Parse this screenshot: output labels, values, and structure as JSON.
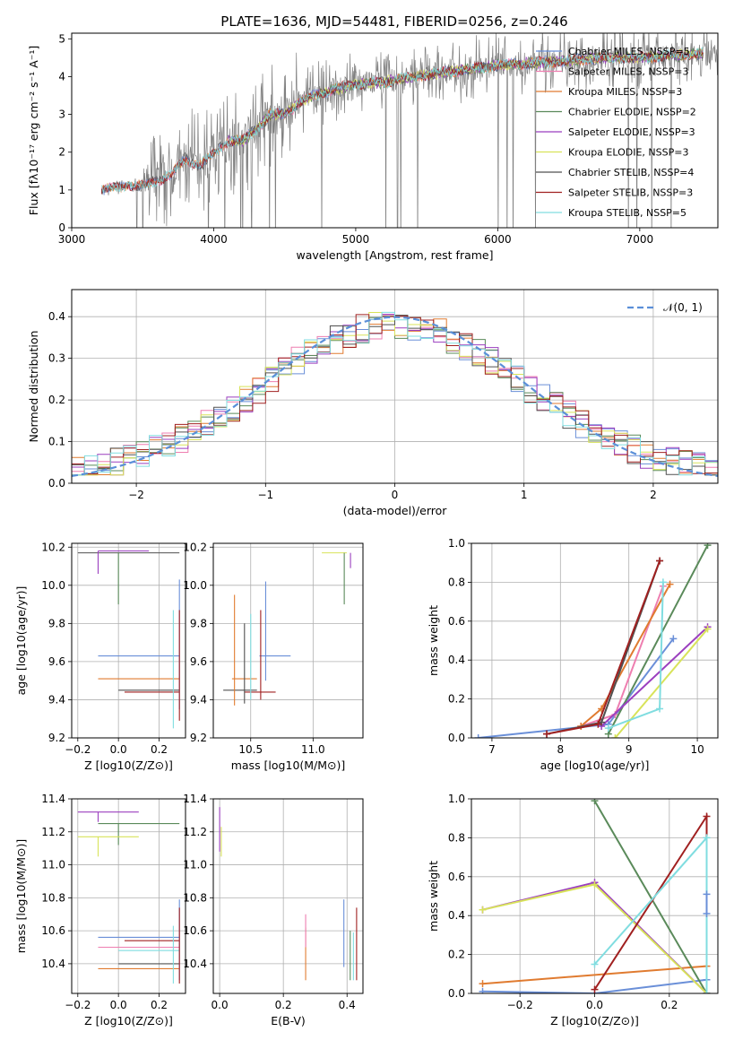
{
  "figure": {
    "title": "PLATE=1636, MJD=54481, FIBERID=0256, z=0.246"
  },
  "colors": {
    "chabrier_miles": "#6a8fd8",
    "salpeter_miles": "#ee7eb0",
    "kroupa_miles": "#e07b30",
    "chabrier_elodie": "#5a8a5a",
    "salpeter_elodie": "#9b3fbf",
    "kroupa_elodie": "#d8e35a",
    "chabrier_stelib": "#505050",
    "salpeter_stelib": "#a02020",
    "kroupa_stelib": "#80dde0",
    "data_spectrum": "#808080",
    "gaussian": "#5a8fd8"
  },
  "chart_data": [
    {
      "id": "spectrum",
      "type": "line",
      "xlabel": "wavelength [Angstrom, rest frame]",
      "ylabel": "Flux [fλ10⁻¹⁷ erg cm⁻² s⁻¹ A⁻¹]",
      "xlim": [
        3000,
        7550
      ],
      "ylim": [
        0,
        5.15
      ],
      "xticks": [
        "3000",
        "4000",
        "5000",
        "6000",
        "7000"
      ],
      "yticks": [
        "0",
        "1",
        "2",
        "3",
        "4",
        "5"
      ],
      "legend": [
        {
          "label": "Chabrier MILES, NSSP=5",
          "color_key": "chabrier_miles"
        },
        {
          "label": "Salpeter MILES, NSSP=3",
          "color_key": "salpeter_miles"
        },
        {
          "label": "Kroupa MILES, NSSP=3",
          "color_key": "kroupa_miles"
        },
        {
          "label": "Chabrier ELODIE, NSSP=2",
          "color_key": "chabrier_elodie"
        },
        {
          "label": "Salpeter ELODIE, NSSP=3",
          "color_key": "salpeter_elodie"
        },
        {
          "label": "Kroupa ELODIE, NSSP=3",
          "color_key": "kroupa_elodie"
        },
        {
          "label": "Chabrier STELIB, NSSP=4",
          "color_key": "chabrier_stelib"
        },
        {
          "label": "Salpeter STELIB, NSSP=3",
          "color_key": "salpeter_stelib"
        },
        {
          "label": "Kroupa STELIB, NSSP=5",
          "color_key": "kroupa_stelib"
        }
      ],
      "legend_placement": "right",
      "continuum": {
        "x": [
          3210,
          3300,
          3400,
          3500,
          3600,
          3700,
          3800,
          3900,
          4000,
          4100,
          4200,
          4300,
          4400,
          4500,
          4600,
          4700,
          4800,
          4900,
          5000,
          5200,
          5400,
          5600,
          5800,
          6000,
          6200,
          6400,
          6600,
          6800,
          7000,
          7200,
          7400,
          7550
        ],
        "y": [
          1.0,
          1.05,
          1.15,
          1.1,
          1.25,
          1.4,
          1.8,
          1.65,
          1.95,
          2.3,
          2.3,
          2.6,
          3.0,
          3.0,
          3.3,
          3.5,
          3.6,
          3.7,
          3.8,
          3.85,
          4.0,
          4.1,
          4.2,
          4.3,
          4.35,
          4.4,
          4.45,
          4.5,
          4.5,
          4.55,
          4.6,
          4.6
        ]
      }
    },
    {
      "id": "residuals",
      "type": "line",
      "xlabel": "(data-model)/error",
      "ylabel": "Normed distribution",
      "xlim": [
        -2.5,
        2.5
      ],
      "ylim": [
        0,
        0.465
      ],
      "xticks": [
        "−2",
        "−1",
        "0",
        "1",
        "2"
      ],
      "yticks": [
        "0.0",
        "0.1",
        "0.2",
        "0.3",
        "0.4"
      ],
      "legend": [
        {
          "label": "𝒩(0, 1)",
          "color_key": "gaussian"
        }
      ],
      "legend_placement": "upper right",
      "grid": true
    },
    {
      "id": "age_vs_Z",
      "type": "scatter",
      "xlabel": "Z [log10(Z/Z⊙)]",
      "ylabel": "age [log10(age/yr)]",
      "xlim": [
        -0.23,
        0.33
      ],
      "ylim": [
        9.2,
        10.22
      ],
      "xticks": [
        "−0.2",
        "0.0",
        "0.2"
      ],
      "yticks": [
        "9.2",
        "9.4",
        "9.6",
        "9.8",
        "10.0",
        "10.2"
      ],
      "grid": true,
      "points": [
        {
          "x": -0.2,
          "y": 10.17,
          "xerr": [
            0,
            0.5
          ],
          "yerr": [
            0.0,
            0.0
          ],
          "color_key": "chabrier_stelib"
        },
        {
          "x": -0.1,
          "y": 10.18,
          "xerr": [
            0.0,
            0.25
          ],
          "yerr": [
            0.12,
            0.0
          ],
          "color_key": "salpeter_elodie"
        },
        {
          "x": 0.0,
          "y": 10.17,
          "xerr": [
            0.0,
            0.0
          ],
          "yerr": [
            0.27,
            0.0
          ],
          "color_key": "chabrier_elodie"
        },
        {
          "x": -0.1,
          "y": 9.63,
          "xerr": [
            0,
            0.4
          ],
          "yerr": [
            0,
            0
          ],
          "color_key": "chabrier_miles"
        },
        {
          "x": -0.1,
          "y": 9.51,
          "xerr": [
            0,
            0.4
          ],
          "yerr": [
            0,
            0
          ],
          "color_key": "kroupa_miles"
        },
        {
          "x": 0.0,
          "y": 9.45,
          "xerr": [
            0,
            0.3
          ],
          "yerr": [
            0,
            0
          ],
          "color_key": "chabrier_stelib"
        },
        {
          "x": 0.03,
          "y": 9.44,
          "xerr": [
            0,
            0.27
          ],
          "yerr": [
            0,
            0
          ],
          "color_key": "salpeter_stelib"
        },
        {
          "x": 0.27,
          "y": 9.57,
          "xerr": [
            0,
            0
          ],
          "yerr": [
            0.32,
            0.3
          ],
          "color_key": "kroupa_stelib"
        },
        {
          "x": 0.3,
          "y": 9.65,
          "xerr": [
            0,
            0
          ],
          "yerr": [
            0.3,
            0.38
          ],
          "color_key": "chabrier_miles"
        },
        {
          "x": 0.3,
          "y": 9.58,
          "xerr": [
            0,
            0
          ],
          "yerr": [
            0.29,
            0.29
          ],
          "color_key": "salpeter_stelib"
        }
      ]
    },
    {
      "id": "age_vs_mass",
      "type": "scatter",
      "xlabel": "mass [log10(M/M⊙)]",
      "ylabel": "",
      "xlim": [
        10.2,
        11.4
      ],
      "ylim": [
        9.2,
        10.22
      ],
      "xticks": [
        "10.5",
        "11.0"
      ],
      "yticks": [
        "9.2",
        "9.4",
        "9.6",
        "9.8",
        "10.0",
        "10.2"
      ],
      "grid": true,
      "points": [
        {
          "x": 11.17,
          "y": 10.17,
          "xerr": [
            0.1,
            0.1
          ],
          "yerr": [
            0.0,
            0.0
          ],
          "color_key": "kroupa_elodie"
        },
        {
          "x": 11.3,
          "y": 10.17,
          "xerr": [
            0.0,
            0.0
          ],
          "yerr": [
            0.08,
            0.0
          ],
          "color_key": "salpeter_elodie"
        },
        {
          "x": 11.25,
          "y": 10.17,
          "xerr": [
            0.0,
            0.0
          ],
          "yerr": [
            0.27,
            0.0
          ],
          "color_key": "chabrier_elodie"
        },
        {
          "x": 10.57,
          "y": 9.63,
          "xerr": [
            0.0,
            0.25
          ],
          "yerr": [
            0.0,
            0.0
          ],
          "color_key": "chabrier_miles"
        },
        {
          "x": 10.45,
          "y": 9.51,
          "xerr": [
            0.1,
            0.1
          ],
          "yerr": [
            0.0,
            0.0
          ],
          "color_key": "kroupa_miles"
        },
        {
          "x": 10.4,
          "y": 9.45,
          "xerr": [
            0.12,
            0.15
          ],
          "yerr": [
            0.0,
            0.0
          ],
          "color_key": "chabrier_stelib"
        },
        {
          "x": 10.55,
          "y": 9.44,
          "xerr": [
            0.1,
            0.15
          ],
          "yerr": [
            0.0,
            0.0
          ],
          "color_key": "salpeter_stelib"
        },
        {
          "x": 10.37,
          "y": 9.65,
          "xerr": [
            0,
            0
          ],
          "yerr": [
            0.28,
            0.3
          ],
          "color_key": "kroupa_miles"
        },
        {
          "x": 10.45,
          "y": 9.6,
          "xerr": [
            0,
            0
          ],
          "yerr": [
            0.22,
            0.2
          ],
          "color_key": "chabrier_stelib"
        },
        {
          "x": 10.58,
          "y": 9.6,
          "xerr": [
            0,
            0
          ],
          "yerr": [
            0.2,
            0.27
          ],
          "color_key": "salpeter_stelib"
        },
        {
          "x": 10.62,
          "y": 9.7,
          "xerr": [
            0,
            0
          ],
          "yerr": [
            0.2,
            0.32
          ],
          "color_key": "chabrier_miles"
        },
        {
          "x": 10.5,
          "y": 9.55,
          "xerr": [
            0,
            0
          ],
          "yerr": [
            0.15,
            0.3
          ],
          "color_key": "kroupa_stelib"
        }
      ]
    },
    {
      "id": "massweight_vs_age",
      "type": "line",
      "xlabel": "age [log10(age/yr)]",
      "ylabel": "mass weight",
      "xlim": [
        6.7,
        10.3
      ],
      "ylim": [
        0,
        1.0
      ],
      "xticks": [
        "7",
        "8",
        "9",
        "10"
      ],
      "yticks": [
        "0.0",
        "0.2",
        "0.4",
        "0.6",
        "0.8",
        "1.0"
      ],
      "grid": true,
      "series": [
        {
          "color_key": "chabrier_miles",
          "x": [
            6.8,
            8.7,
            9.65
          ],
          "y": [
            0.0,
            0.07,
            0.51
          ]
        },
        {
          "color_key": "salpeter_miles",
          "x": [
            8.3,
            8.8,
            9.5
          ],
          "y": [
            0.06,
            0.12,
            0.78
          ]
        },
        {
          "color_key": "kroupa_miles",
          "x": [
            8.3,
            8.6,
            9.6
          ],
          "y": [
            0.06,
            0.15,
            0.79
          ]
        },
        {
          "color_key": "chabrier_elodie",
          "x": [
            8.7,
            10.15
          ],
          "y": [
            0.02,
            0.99
          ]
        },
        {
          "color_key": "salpeter_elodie",
          "x": [
            8.6,
            10.15
          ],
          "y": [
            0.06,
            0.57
          ]
        },
        {
          "color_key": "kroupa_elodie",
          "x": [
            8.8,
            10.15
          ],
          "y": [
            0.0,
            0.56
          ]
        },
        {
          "color_key": "chabrier_stelib",
          "x": [
            7.8,
            8.6,
            9.45
          ],
          "y": [
            0.02,
            0.08,
            0.91
          ]
        },
        {
          "color_key": "salpeter_stelib",
          "x": [
            7.8,
            8.55,
            9.45
          ],
          "y": [
            0.02,
            0.07,
            0.91
          ]
        },
        {
          "color_key": "kroupa_stelib",
          "x": [
            8.7,
            9.45,
            9.5
          ],
          "y": [
            0.05,
            0.15,
            0.8
          ]
        }
      ]
    },
    {
      "id": "mass_vs_Z",
      "type": "scatter",
      "xlabel": "Z [log10(Z/Z⊙)]",
      "ylabel": "mass [log10(M/M⊙)]",
      "xlim": [
        -0.23,
        0.33
      ],
      "ylim": [
        10.22,
        11.4
      ],
      "xticks": [
        "−0.2",
        "0.0",
        "0.2"
      ],
      "yticks": [
        "10.4",
        "10.6",
        "10.8",
        "11.0",
        "11.2",
        "11.4"
      ],
      "grid": true,
      "points": [
        {
          "x": -0.1,
          "y": 11.32,
          "xerr": [
            0.1,
            0.2
          ],
          "yerr": [
            0.06,
            0.0
          ],
          "color_key": "salpeter_elodie"
        },
        {
          "x": 0.0,
          "y": 11.25,
          "xerr": [
            0.1,
            0.3
          ],
          "yerr": [
            0.13,
            0.0
          ],
          "color_key": "chabrier_elodie"
        },
        {
          "x": -0.1,
          "y": 11.17,
          "xerr": [
            0.1,
            0.2
          ],
          "yerr": [
            0.12,
            0.0
          ],
          "color_key": "kroupa_elodie"
        },
        {
          "x": -0.1,
          "y": 10.56,
          "xerr": [
            0.0,
            0.4
          ],
          "yerr": [
            0,
            0
          ],
          "color_key": "chabrier_miles"
        },
        {
          "x": -0.1,
          "y": 10.5,
          "xerr": [
            0.0,
            0.4
          ],
          "yerr": [
            0,
            0
          ],
          "color_key": "salpeter_miles"
        },
        {
          "x": 0.0,
          "y": 10.48,
          "xerr": [
            0,
            0.3
          ],
          "yerr": [
            0,
            0
          ],
          "color_key": "kroupa_stelib"
        },
        {
          "x": 0.03,
          "y": 10.54,
          "xerr": [
            0,
            0.27
          ],
          "yerr": [
            0,
            0
          ],
          "color_key": "salpeter_stelib"
        },
        {
          "x": -0.1,
          "y": 10.37,
          "xerr": [
            0.0,
            0.4
          ],
          "yerr": [
            0,
            0
          ],
          "color_key": "kroupa_miles"
        },
        {
          "x": 0.0,
          "y": 10.4,
          "xerr": [
            0,
            0.3
          ],
          "yerr": [
            0,
            0
          ],
          "color_key": "chabrier_stelib"
        },
        {
          "x": 0.27,
          "y": 10.45,
          "xerr": [
            0,
            0
          ],
          "yerr": [
            0.17,
            0.18
          ],
          "color_key": "kroupa_stelib"
        },
        {
          "x": 0.3,
          "y": 10.5,
          "xerr": [
            0,
            0
          ],
          "yerr": [
            0.2,
            0.29
          ],
          "color_key": "chabrier_miles"
        },
        {
          "x": 0.3,
          "y": 10.5,
          "xerr": [
            0,
            0
          ],
          "yerr": [
            0.22,
            0.24
          ],
          "color_key": "salpeter_stelib"
        }
      ]
    },
    {
      "id": "mass_vs_ebv",
      "type": "scatter",
      "xlabel": "E(B-V)",
      "ylabel": "",
      "xlim": [
        -0.02,
        0.45
      ],
      "ylim": [
        10.22,
        11.4
      ],
      "xticks": [
        "0.0",
        "0.2",
        "0.4"
      ],
      "yticks": [
        "10.4",
        "10.6",
        "10.8",
        "11.0",
        "11.2",
        "11.4"
      ],
      "grid": true,
      "points": [
        {
          "x": 0.0,
          "y": 11.25,
          "xerr": [
            0,
            0
          ],
          "yerr": [
            0.17,
            0.1
          ],
          "color_key": "salpeter_elodie"
        },
        {
          "x": 0.005,
          "y": 11.15,
          "xerr": [
            0,
            0
          ],
          "yerr": [
            0.1,
            0.08
          ],
          "color_key": "kroupa_elodie"
        },
        {
          "x": 0.27,
          "y": 10.5,
          "xerr": [
            0,
            0
          ],
          "yerr": [
            0.2,
            0.12
          ],
          "color_key": "kroupa_miles"
        },
        {
          "x": 0.27,
          "y": 10.6,
          "xerr": [
            0,
            0
          ],
          "yerr": [
            0.1,
            0.1
          ],
          "color_key": "salpeter_miles"
        },
        {
          "x": 0.39,
          "y": 10.55,
          "xerr": [
            0,
            0
          ],
          "yerr": [
            0.17,
            0.24
          ],
          "color_key": "chabrier_miles"
        },
        {
          "x": 0.41,
          "y": 10.45,
          "xerr": [
            0,
            0
          ],
          "yerr": [
            0.15,
            0.15
          ],
          "color_key": "chabrier_elodie"
        },
        {
          "x": 0.42,
          "y": 10.45,
          "xerr": [
            0,
            0
          ],
          "yerr": [
            0.15,
            0.14
          ],
          "color_key": "kroupa_stelib"
        },
        {
          "x": 0.43,
          "y": 10.5,
          "xerr": [
            0,
            0
          ],
          "yerr": [
            0.2,
            0.24
          ],
          "color_key": "salpeter_stelib"
        }
      ]
    },
    {
      "id": "massweight_vs_Z",
      "type": "line",
      "xlabel": "Z [log10(Z/Z⊙)]",
      "ylabel": "mass weight",
      "xlim": [
        -0.33,
        0.33
      ],
      "ylim": [
        0,
        1.0
      ],
      "xticks": [
        "−0.2",
        "0.0",
        "0.2"
      ],
      "yticks": [
        "0.0",
        "0.2",
        "0.4",
        "0.6",
        "0.8",
        "1.0"
      ],
      "grid": true,
      "series": [
        {
          "color_key": "chabrier_miles",
          "x": [
            -0.3,
            0.0,
            0.3
          ],
          "y": [
            0.01,
            0.0,
            0.07
          ]
        },
        {
          "color_key": "kroupa_miles",
          "x": [
            -0.3,
            0.3
          ],
          "y": [
            0.05,
            0.14
          ]
        },
        {
          "color_key": "chabrier_elodie",
          "x": [
            0.0,
            0.3
          ],
          "y": [
            0.99,
            0.0
          ]
        },
        {
          "color_key": "salpeter_elodie",
          "x": [
            -0.3,
            0.0,
            0.3
          ],
          "y": [
            0.43,
            0.57,
            0.0
          ]
        },
        {
          "color_key": "kroupa_elodie",
          "x": [
            -0.3,
            0.0,
            0.3
          ],
          "y": [
            0.43,
            0.56,
            0.0
          ]
        },
        {
          "color_key": "salpeter_stelib",
          "x": [
            0.0,
            0.3,
            0.3
          ],
          "y": [
            0.02,
            0.91,
            0.0
          ]
        },
        {
          "color_key": "kroupa_stelib",
          "x": [
            0.0,
            0.3,
            0.3
          ],
          "y": [
            0.15,
            0.8,
            0.0
          ]
        },
        {
          "color_key": "chabrier_miles",
          "x": [
            0.3,
            0.3
          ],
          "y": [
            0.51,
            0.41
          ]
        }
      ]
    }
  ]
}
